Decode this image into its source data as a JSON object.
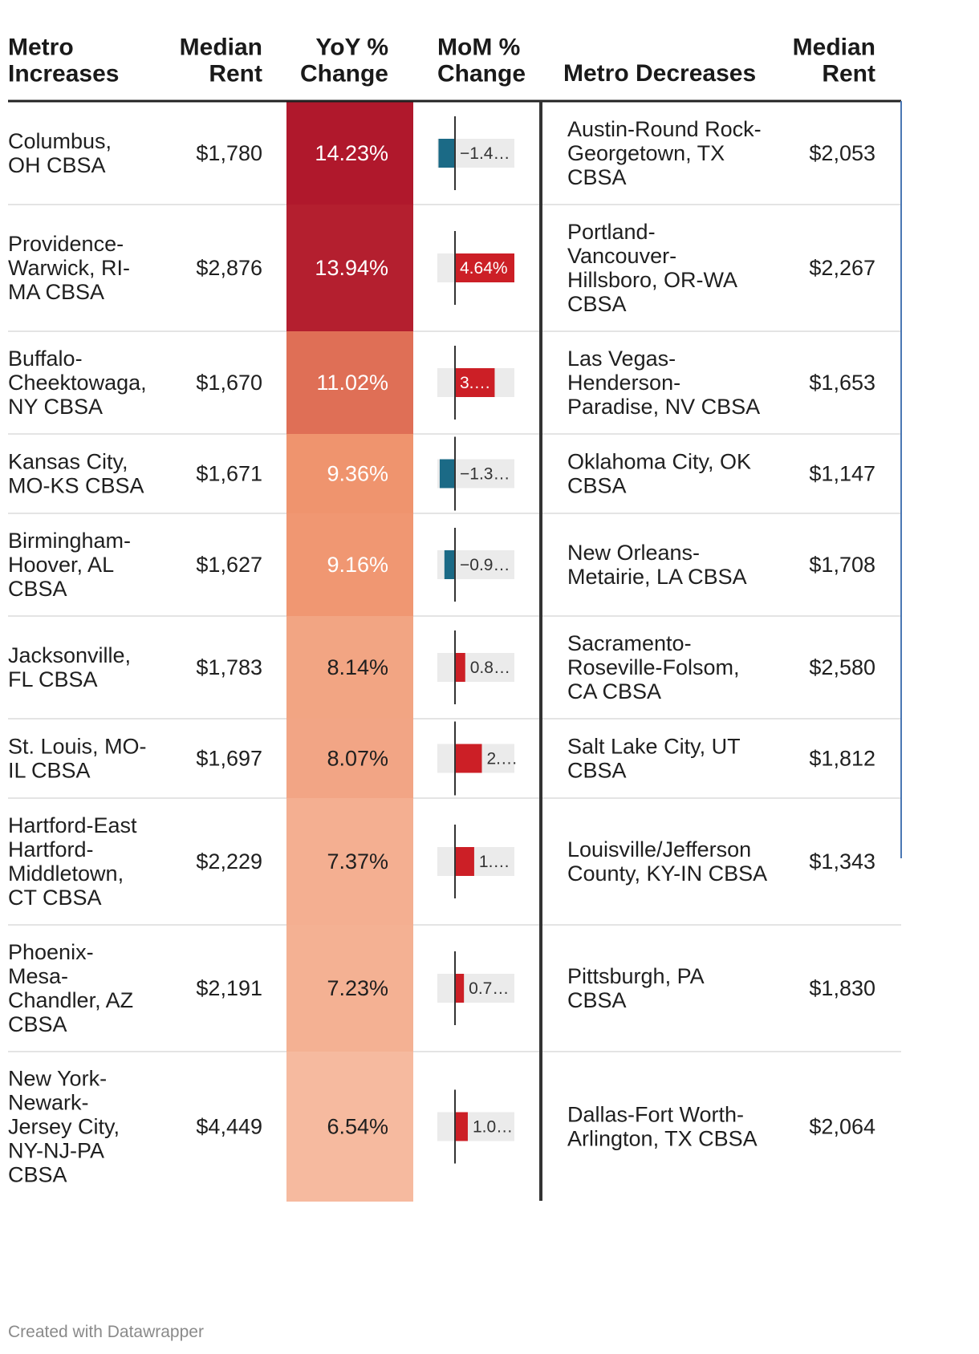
{
  "headers": {
    "metro_increases": [
      "Metro",
      "Increases"
    ],
    "median_rent_left": [
      "Median",
      "Rent"
    ],
    "yoy": [
      "YoY %",
      "Change"
    ],
    "mom": [
      "MoM %",
      "Change"
    ],
    "metro_decreases": [
      "Metro Decreases"
    ],
    "median_rent_right": [
      "Median",
      "Rent"
    ]
  },
  "chart_data": {
    "type": "table",
    "columns": [
      "Metro Increases",
      "Median Rent",
      "YoY % Change",
      "MoM % Change",
      "Metro Decreases",
      "Median Rent"
    ],
    "rows": [
      {
        "inc_lines": [
          "Columbus,",
          "OH CBSA"
        ],
        "rent_inc": "$1,780",
        "yoy": 14.23,
        "yoy_label": "14.23%",
        "mom": -1.4,
        "mom_label": "−1.4…",
        "dec_lines": [
          "Austin-Round Rock-",
          "Georgetown, TX",
          "CBSA"
        ],
        "rent_dec": "$2,053"
      },
      {
        "inc_lines": [
          "Providence-",
          "Warwick, RI-",
          "MA CBSA"
        ],
        "rent_inc": "$2,876",
        "yoy": 13.94,
        "yoy_label": "13.94%",
        "mom": 4.64,
        "mom_label": "4.64%",
        "dec_lines": [
          "Portland-",
          "Vancouver-",
          "Hillsboro, OR-WA",
          "CBSA"
        ],
        "rent_dec": "$2,267"
      },
      {
        "inc_lines": [
          "Buffalo-",
          "Cheektowaga,",
          "NY CBSA"
        ],
        "rent_inc": "$1,670",
        "yoy": 11.02,
        "yoy_label": "11.02%",
        "mom": 3.1,
        "mom_label": "3.…",
        "dec_lines": [
          "Las Vegas-",
          "Henderson-",
          "Paradise, NV CBSA"
        ],
        "rent_dec": "$1,653"
      },
      {
        "inc_lines": [
          "Kansas City,",
          "MO-KS CBSA"
        ],
        "rent_inc": "$1,671",
        "yoy": 9.36,
        "yoy_label": "9.36%",
        "mom": -1.3,
        "mom_label": "−1.3…",
        "dec_lines": [
          "Oklahoma City, OK",
          "CBSA"
        ],
        "rent_dec": "$1,147"
      },
      {
        "inc_lines": [
          "Birmingham-",
          "Hoover, AL",
          "CBSA"
        ],
        "rent_inc": "$1,627",
        "yoy": 9.16,
        "yoy_label": "9.16%",
        "mom": -0.9,
        "mom_label": "−0.9…",
        "dec_lines": [
          "New Orleans-",
          "Metairie, LA CBSA"
        ],
        "rent_dec": "$1,708"
      },
      {
        "inc_lines": [
          "Jacksonville,",
          "FL CBSA"
        ],
        "rent_inc": "$1,783",
        "yoy": 8.14,
        "yoy_label": "8.14%",
        "mom": 0.8,
        "mom_label": "0.8…",
        "dec_lines": [
          "Sacramento-",
          "Roseville-Folsom,",
          "CA CBSA"
        ],
        "rent_dec": "$2,580"
      },
      {
        "inc_lines": [
          "St. Louis, MO-",
          "IL CBSA"
        ],
        "rent_inc": "$1,697",
        "yoy": 8.07,
        "yoy_label": "8.07%",
        "mom": 2.1,
        "mom_label": "2.…",
        "dec_lines": [
          "Salt Lake City, UT",
          "CBSA"
        ],
        "rent_dec": "$1,812"
      },
      {
        "inc_lines": [
          "Hartford-East",
          "Hartford-",
          "Middletown,",
          "CT CBSA"
        ],
        "rent_inc": "$2,229",
        "yoy": 7.37,
        "yoy_label": "7.37%",
        "mom": 1.5,
        "mom_label": "1.…",
        "dec_lines": [
          "Louisville/Jefferson",
          "County, KY-IN CBSA"
        ],
        "rent_dec": "$1,343"
      },
      {
        "inc_lines": [
          "Phoenix-",
          "Mesa-",
          "Chandler, AZ",
          "CBSA"
        ],
        "rent_inc": "$2,191",
        "yoy": 7.23,
        "yoy_label": "7.23%",
        "mom": 0.7,
        "mom_label": "0.7…",
        "dec_lines": [
          "Pittsburgh, PA",
          "CBSA"
        ],
        "rent_dec": "$1,830"
      },
      {
        "inc_lines": [
          "New York-",
          "Newark-",
          "Jersey City,",
          "NY-NJ-PA",
          "CBSA"
        ],
        "rent_inc": "$4,449",
        "yoy": 6.54,
        "yoy_label": "6.54%",
        "mom": 1.0,
        "mom_label": "1.0…",
        "dec_lines": [
          "Dallas-Fort Worth-",
          "Arlington, TX CBSA"
        ],
        "rent_dec": "$2,064"
      }
    ]
  },
  "footer": {
    "credit": "Created with Datawrapper"
  },
  "colors": {
    "negative_bar": "#1b6a86",
    "positive_bar": "#cc1f26",
    "bar_background": "#ebebeb",
    "heat_low": "#f6bba0",
    "heat_mid": "#ee8b63",
    "heat_high": "#b0182c"
  }
}
